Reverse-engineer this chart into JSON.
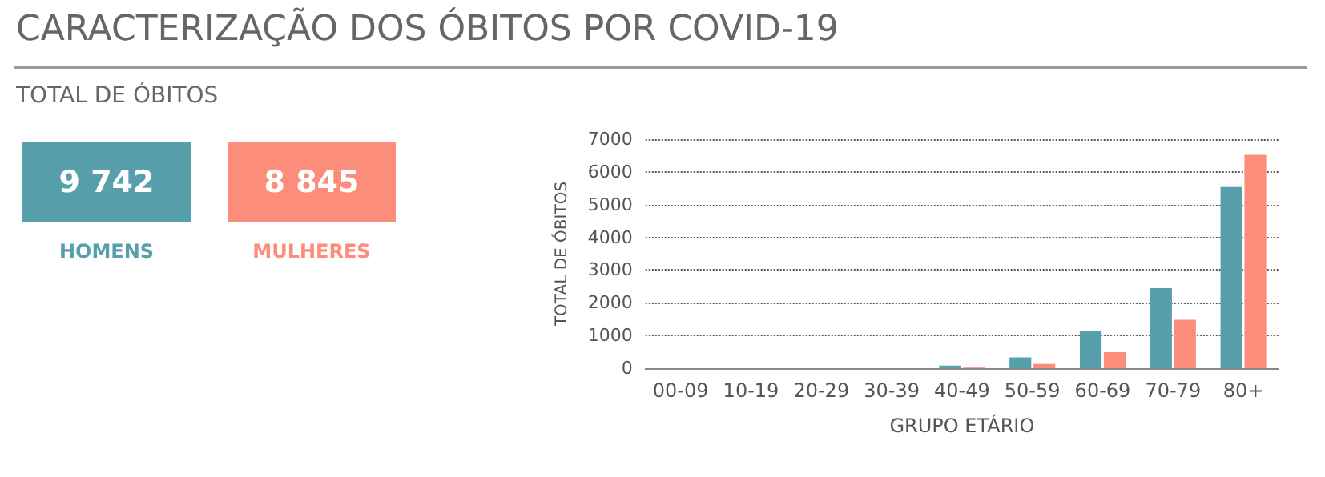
{
  "chart_data": [
    {
      "type": "other",
      "title": "CARACTERIZAÇÃO DOS ÓBITOS POR COVID-19",
      "subtitle": "TOTAL DE ÓBITOS",
      "categories": [
        "HOMENS",
        "MULHERES"
      ],
      "value_labels": [
        "9 742",
        "8 845"
      ],
      "colors": [
        "#57a0ab",
        "#fc8d7a"
      ]
    },
    {
      "type": "bar",
      "xlabel": "GRUPO ETÁRIO",
      "ylabel": "TOTAL DE ÓBITOS",
      "categories": [
        "00-09",
        "10-19",
        "20-29",
        "30-39",
        "40-49",
        "50-59",
        "60-69",
        "70-79",
        "80+"
      ],
      "series": [
        {
          "color": "#57a0ab",
          "values": [
            0,
            0,
            0,
            0,
            80,
            330,
            1130,
            2450,
            5540
          ]
        },
        {
          "color": "#fc8d7a",
          "values": [
            0,
            0,
            0,
            0,
            20,
            130,
            490,
            1480,
            6520
          ]
        }
      ],
      "ylim": [
        0,
        7000
      ],
      "yticks": [
        0,
        1000,
        2000,
        3000,
        4000,
        5000,
        6000,
        7000
      ],
      "grid": "y"
    }
  ]
}
